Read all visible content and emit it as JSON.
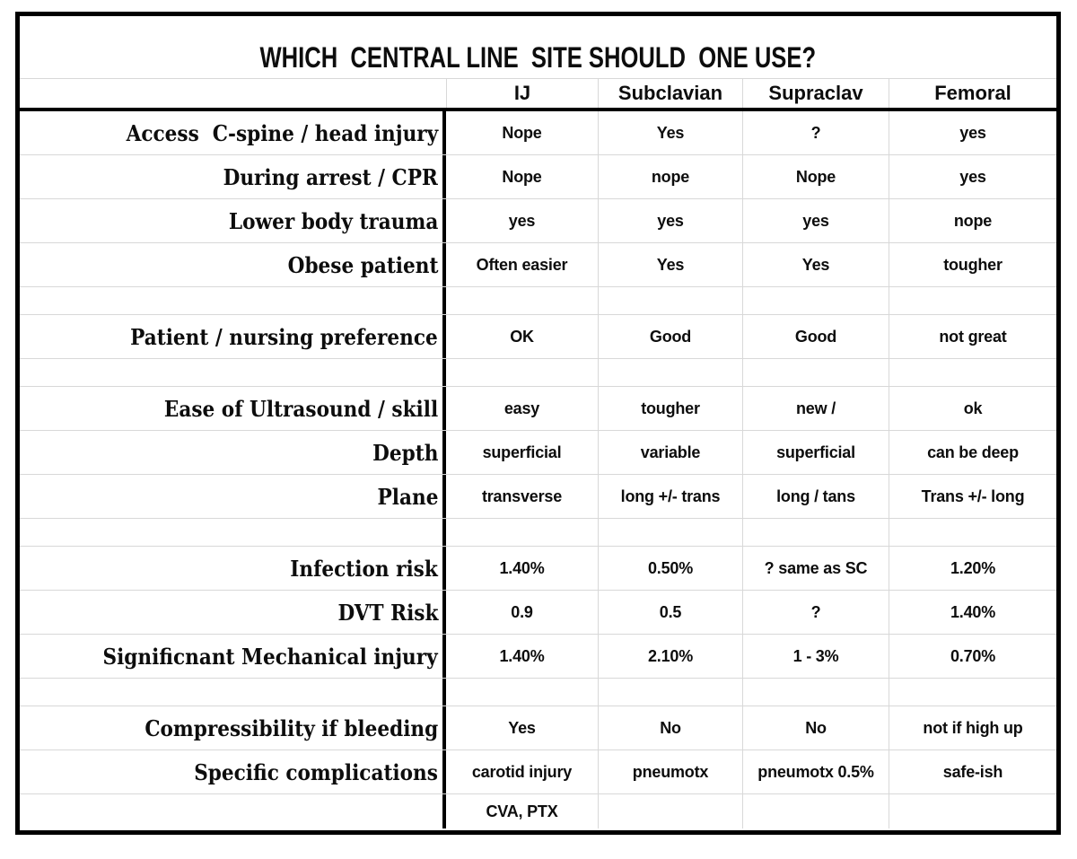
{
  "colors": {
    "background": "#ffffff",
    "frame_border": "#000000",
    "gridline": "#d8d8d8",
    "text": "#0d0d0d"
  },
  "chart_data": {
    "type": "table",
    "title": "WHICH  CENTRAL LINE  SITE SHOULD  ONE USE?",
    "row_header_label": "",
    "columns": [
      "IJ",
      "Subclavian",
      "Supraclav",
      "Femoral"
    ],
    "rows": [
      {
        "label": "Access  C-spine / head injury",
        "cells": [
          "Nope",
          "Yes",
          "?",
          "yes"
        ]
      },
      {
        "label": "During arrest / CPR",
        "cells": [
          "Nope",
          "nope",
          "Nope",
          "yes"
        ]
      },
      {
        "label": "Lower body trauma",
        "cells": [
          "yes",
          "yes",
          "yes",
          "nope"
        ]
      },
      {
        "label": "Obese patient",
        "cells": [
          "Often easier",
          "Yes",
          "Yes",
          "tougher"
        ]
      },
      {
        "label": "",
        "cells": [
          "",
          "",
          "",
          ""
        ]
      },
      {
        "label": "Patient / nursing preference",
        "cells": [
          "OK",
          "Good",
          "Good",
          "not great"
        ]
      },
      {
        "label": "",
        "cells": [
          "",
          "",
          "",
          ""
        ]
      },
      {
        "label": "Ease of Ultrasound / skill",
        "cells": [
          "easy",
          "tougher",
          "new /",
          "ok"
        ]
      },
      {
        "label": "Depth",
        "cells": [
          "superficial",
          "variable",
          "superficial",
          "can be deep"
        ]
      },
      {
        "label": "Plane",
        "cells": [
          "transverse",
          "long +/- trans",
          "long / tans",
          "Trans +/- long"
        ]
      },
      {
        "label": "",
        "cells": [
          "",
          "",
          "",
          ""
        ]
      },
      {
        "label": "Infection risk",
        "cells": [
          "1.40%",
          "0.50%",
          "? same as SC",
          "1.20%"
        ]
      },
      {
        "label": "DVT Risk",
        "cells": [
          "0.9",
          "0.5",
          "?",
          "1.40%"
        ]
      },
      {
        "label": "Significnant Mechanical injury",
        "cells": [
          "1.40%",
          "2.10%",
          "1 - 3%",
          "0.70%"
        ]
      },
      {
        "label": "",
        "cells": [
          "",
          "",
          "",
          ""
        ]
      },
      {
        "label": "Compressibility if bleeding",
        "cells": [
          "Yes",
          "No",
          "No",
          "not if high up"
        ]
      },
      {
        "label": "Specific complications",
        "cells": [
          "carotid injury",
          "pneumotx",
          "pneumotx 0.5%",
          "safe-ish"
        ]
      },
      {
        "label": "",
        "cells": [
          "CVA, PTX",
          "",
          "",
          ""
        ]
      }
    ],
    "layout": {
      "grid": true,
      "label_column_divider": "thick-black",
      "header_divider": "thick-black",
      "spacer_row_indexes": [
        4,
        6,
        10,
        14
      ]
    }
  }
}
